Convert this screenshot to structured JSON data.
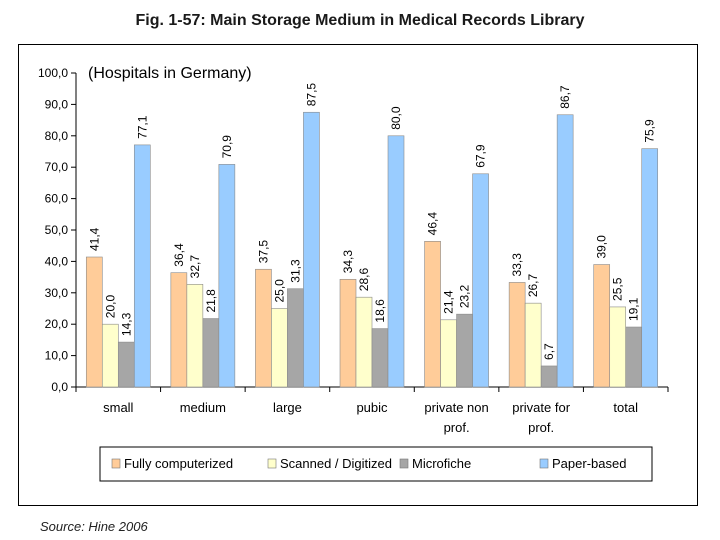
{
  "figure": {
    "title": "Fig. 1-57: Main Storage Medium in Medical Records Library",
    "subtitle": "(Hospitals in Germany)",
    "source": "Source: Hine 2006"
  },
  "chart_data": {
    "type": "bar",
    "title": "Main Storage Medium in Medical Records Library",
    "xlabel": "",
    "ylabel": "",
    "ylim": [
      0,
      100
    ],
    "yticks": [
      "0,0",
      "10,0",
      "20,0",
      "30,0",
      "40,0",
      "50,0",
      "60,0",
      "70,0",
      "80,0",
      "90,0",
      "100,0"
    ],
    "categories": [
      [
        "small"
      ],
      [
        "medium"
      ],
      [
        "large"
      ],
      [
        "pubic"
      ],
      [
        "private non",
        "prof."
      ],
      [
        "private for",
        "prof."
      ],
      [
        "total"
      ]
    ],
    "series": [
      {
        "name": "Fully computerized",
        "color": "#FFCC99",
        "values": [
          41.4,
          36.4,
          37.5,
          34.3,
          46.4,
          33.3,
          39.0
        ],
        "labels": [
          "41,4",
          "36,4",
          "37,5",
          "34,3",
          "46,4",
          "33,3",
          "39,0"
        ]
      },
      {
        "name": "Scanned / Digitized",
        "color": "#FFFFCC",
        "values": [
          20.0,
          32.7,
          25.0,
          28.6,
          21.4,
          26.7,
          25.5
        ],
        "labels": [
          "20,0",
          "32,7",
          "25,0",
          "28,6",
          "21,4",
          "26,7",
          "25,5"
        ]
      },
      {
        "name": "Microfiche",
        "color": "#A6A6A6",
        "values": [
          14.3,
          21.8,
          31.3,
          18.6,
          23.2,
          6.7,
          19.1
        ],
        "labels": [
          "14,3",
          "21,8",
          "31,3",
          "18,6",
          "23,2",
          "6,7",
          "19,1"
        ]
      },
      {
        "name": "Paper-based",
        "color": "#99CCFF",
        "values": [
          77.1,
          70.9,
          87.5,
          80.0,
          67.9,
          86.7,
          75.9
        ],
        "labels": [
          "77,1",
          "70,9",
          "87,5",
          "80,0",
          "67,9",
          "86,7",
          "75,9"
        ]
      }
    ],
    "legend_position": "bottom"
  }
}
